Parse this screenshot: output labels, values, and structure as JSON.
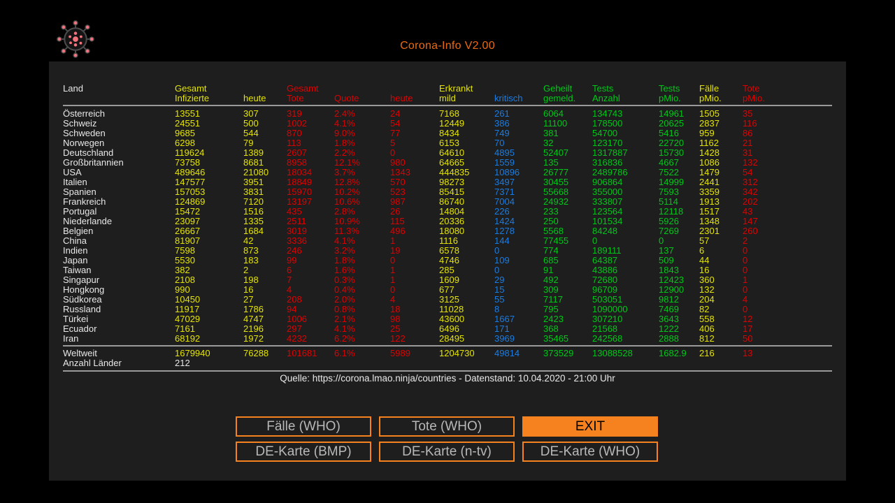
{
  "app": {
    "title": "Corona-Info V2.00"
  },
  "table": {
    "columns": [
      {
        "line1": "Land",
        "line2": ""
      },
      {
        "line1": "Gesamt",
        "line2": "Infizierte"
      },
      {
        "line1": "",
        "line2": "heute"
      },
      {
        "line1": "Gesamt",
        "line2": "Tote"
      },
      {
        "line1": "",
        "line2": "Quote"
      },
      {
        "line1": "",
        "line2": "heute"
      },
      {
        "line1": "Erkrankt",
        "line2": "mild"
      },
      {
        "line1": "",
        "line2": "kritisch"
      },
      {
        "line1": "Geheilt",
        "line2": "gemeld."
      },
      {
        "line1": "Tests",
        "line2": "Anzahl"
      },
      {
        "line1": "Tests",
        "line2": "pMio."
      },
      {
        "line1": "Fälle",
        "line2": "pMio."
      },
      {
        "line1": "Tote",
        "line2": "pMio."
      }
    ],
    "column_colors": [
      "white",
      "yellow",
      "yellow",
      "red",
      "red",
      "red",
      "yellow",
      "blue",
      "green",
      "green",
      "green",
      "yellow",
      "red"
    ],
    "rows": [
      [
        "Österreich",
        "13551",
        "307",
        "319",
        "2.4%",
        "24",
        "7168",
        "261",
        "6064",
        "134743",
        "14961",
        "1505",
        "35"
      ],
      [
        "Schweiz",
        "24551",
        "500",
        "1002",
        "4.1%",
        "54",
        "12449",
        "386",
        "11100",
        "178500",
        "20625",
        "2837",
        "116"
      ],
      [
        "Schweden",
        "9685",
        "544",
        "870",
        "9.0%",
        "77",
        "8434",
        "749",
        "381",
        "54700",
        "5416",
        "959",
        "86"
      ],
      [
        "Norwegen",
        "6298",
        "79",
        "113",
        "1.8%",
        "5",
        "6153",
        "70",
        "32",
        "123170",
        "22720",
        "1162",
        "21"
      ],
      [
        "Deutschland",
        "119624",
        "1389",
        "2607",
        "2.2%",
        "0",
        "64610",
        "4895",
        "52407",
        "1317887",
        "15730",
        "1428",
        "31"
      ],
      [
        "Großbritannien",
        "73758",
        "8681",
        "8958",
        "12.1%",
        "980",
        "64665",
        "1559",
        "135",
        "316836",
        "4667",
        "1086",
        "132"
      ],
      [
        "USA",
        "489646",
        "21080",
        "18034",
        "3.7%",
        "1343",
        "444835",
        "10896",
        "26777",
        "2489786",
        "7522",
        "1479",
        "54"
      ],
      [
        "Italien",
        "147577",
        "3951",
        "18849",
        "12.8%",
        "570",
        "98273",
        "3497",
        "30455",
        "906864",
        "14999",
        "2441",
        "312"
      ],
      [
        "Spanien",
        "157053",
        "3831",
        "15970",
        "10.2%",
        "523",
        "85415",
        "7371",
        "55668",
        "355000",
        "7593",
        "3359",
        "342"
      ],
      [
        "Frankreich",
        "124869",
        "7120",
        "13197",
        "10.6%",
        "987",
        "86740",
        "7004",
        "24932",
        "333807",
        "5114",
        "1913",
        "202"
      ],
      [
        "Portugal",
        "15472",
        "1516",
        "435",
        "2.8%",
        "26",
        "14804",
        "226",
        "233",
        "123564",
        "12118",
        "1517",
        "43"
      ],
      [
        "Niederlande",
        "23097",
        "1335",
        "2511",
        "10.9%",
        "115",
        "20336",
        "1424",
        "250",
        "101534",
        "5926",
        "1348",
        "147"
      ],
      [
        "Belgien",
        "26667",
        "1684",
        "3019",
        "11.3%",
        "496",
        "18080",
        "1278",
        "5568",
        "84248",
        "7269",
        "2301",
        "260"
      ],
      [
        "China",
        "81907",
        "42",
        "3336",
        "4.1%",
        "1",
        "1116",
        "144",
        "77455",
        "0",
        "0",
        "57",
        "2"
      ],
      [
        "Indien",
        "7598",
        "873",
        "246",
        "3.2%",
        "19",
        "6578",
        "0",
        "774",
        "189111",
        "137",
        "6",
        "0"
      ],
      [
        "Japan",
        "5530",
        "183",
        "99",
        "1.8%",
        "0",
        "4746",
        "109",
        "685",
        "64387",
        "509",
        "44",
        "0"
      ],
      [
        "Taiwan",
        "382",
        "2",
        "6",
        "1.6%",
        "1",
        "285",
        "0",
        "91",
        "43886",
        "1843",
        "16",
        "0"
      ],
      [
        "Singapur",
        "2108",
        "198",
        "7",
        "0.3%",
        "1",
        "1609",
        "29",
        "492",
        "72680",
        "12423",
        "360",
        "1"
      ],
      [
        "Hongkong",
        "990",
        "16",
        "4",
        "0.4%",
        "0",
        "677",
        "15",
        "309",
        "96709",
        "12900",
        "132",
        "0"
      ],
      [
        "Südkorea",
        "10450",
        "27",
        "208",
        "2.0%",
        "4",
        "3125",
        "55",
        "7117",
        "503051",
        "9812",
        "204",
        "4"
      ],
      [
        "Russland",
        "11917",
        "1786",
        "94",
        "0.8%",
        "18",
        "11028",
        "8",
        "795",
        "1090000",
        "7469",
        "82",
        "0"
      ],
      [
        "Türkei",
        "47029",
        "4747",
        "1006",
        "2.1%",
        "98",
        "43600",
        "1667",
        "2423",
        "307210",
        "3643",
        "558",
        "12"
      ],
      [
        "Ecuador",
        "7161",
        "2196",
        "297",
        "4.1%",
        "25",
        "6496",
        "171",
        "368",
        "21568",
        "1222",
        "406",
        "17"
      ],
      [
        "Iran",
        "68192",
        "1972",
        "4232",
        "6.2%",
        "122",
        "28495",
        "3969",
        "35465",
        "242568",
        "2888",
        "812",
        "50"
      ]
    ],
    "summary_rows": [
      {
        "cells": [
          "Weltweit",
          "1679940",
          "76288",
          "101681",
          "6.1%",
          "5989",
          "1204730",
          "49814",
          "373529",
          "13088528",
          "1682.9",
          "216",
          "13"
        ],
        "use_column_colors": true
      },
      {
        "cells": [
          "Anzahl Länder",
          "212",
          "",
          "",
          "",
          "",
          "",
          "",
          "",
          "",
          "",
          "",
          ""
        ],
        "use_column_colors": false
      }
    ]
  },
  "footer": {
    "source": "Quelle: https://corona.lmao.ninja/countries - Datenstand: 10.04.2020 - 21:00 Uhr"
  },
  "buttons": [
    {
      "id": "faelle-who",
      "label": "Fälle (WHO)",
      "highlight": false
    },
    {
      "id": "tote-who",
      "label": "Tote (WHO)",
      "highlight": false
    },
    {
      "id": "exit",
      "label": "EXIT",
      "highlight": true
    },
    {
      "id": "de-karte-bmp",
      "label": "DE-Karte (BMP)",
      "highlight": false
    },
    {
      "id": "de-karte-ntv",
      "label": "DE-Karte (n-tv)",
      "highlight": false
    },
    {
      "id": "de-karte-who",
      "label": "DE-Karte (WHO)",
      "highlight": false
    }
  ],
  "icons": {
    "header_icon": "virus-icon"
  },
  "colors": {
    "accent_orange": "#ea6a12",
    "button_orange": "#f5821f",
    "yellow": "#e4e400",
    "red": "#e00000",
    "green": "#00c818",
    "blue": "#1b7ce0",
    "white": "#e8e8e8"
  }
}
